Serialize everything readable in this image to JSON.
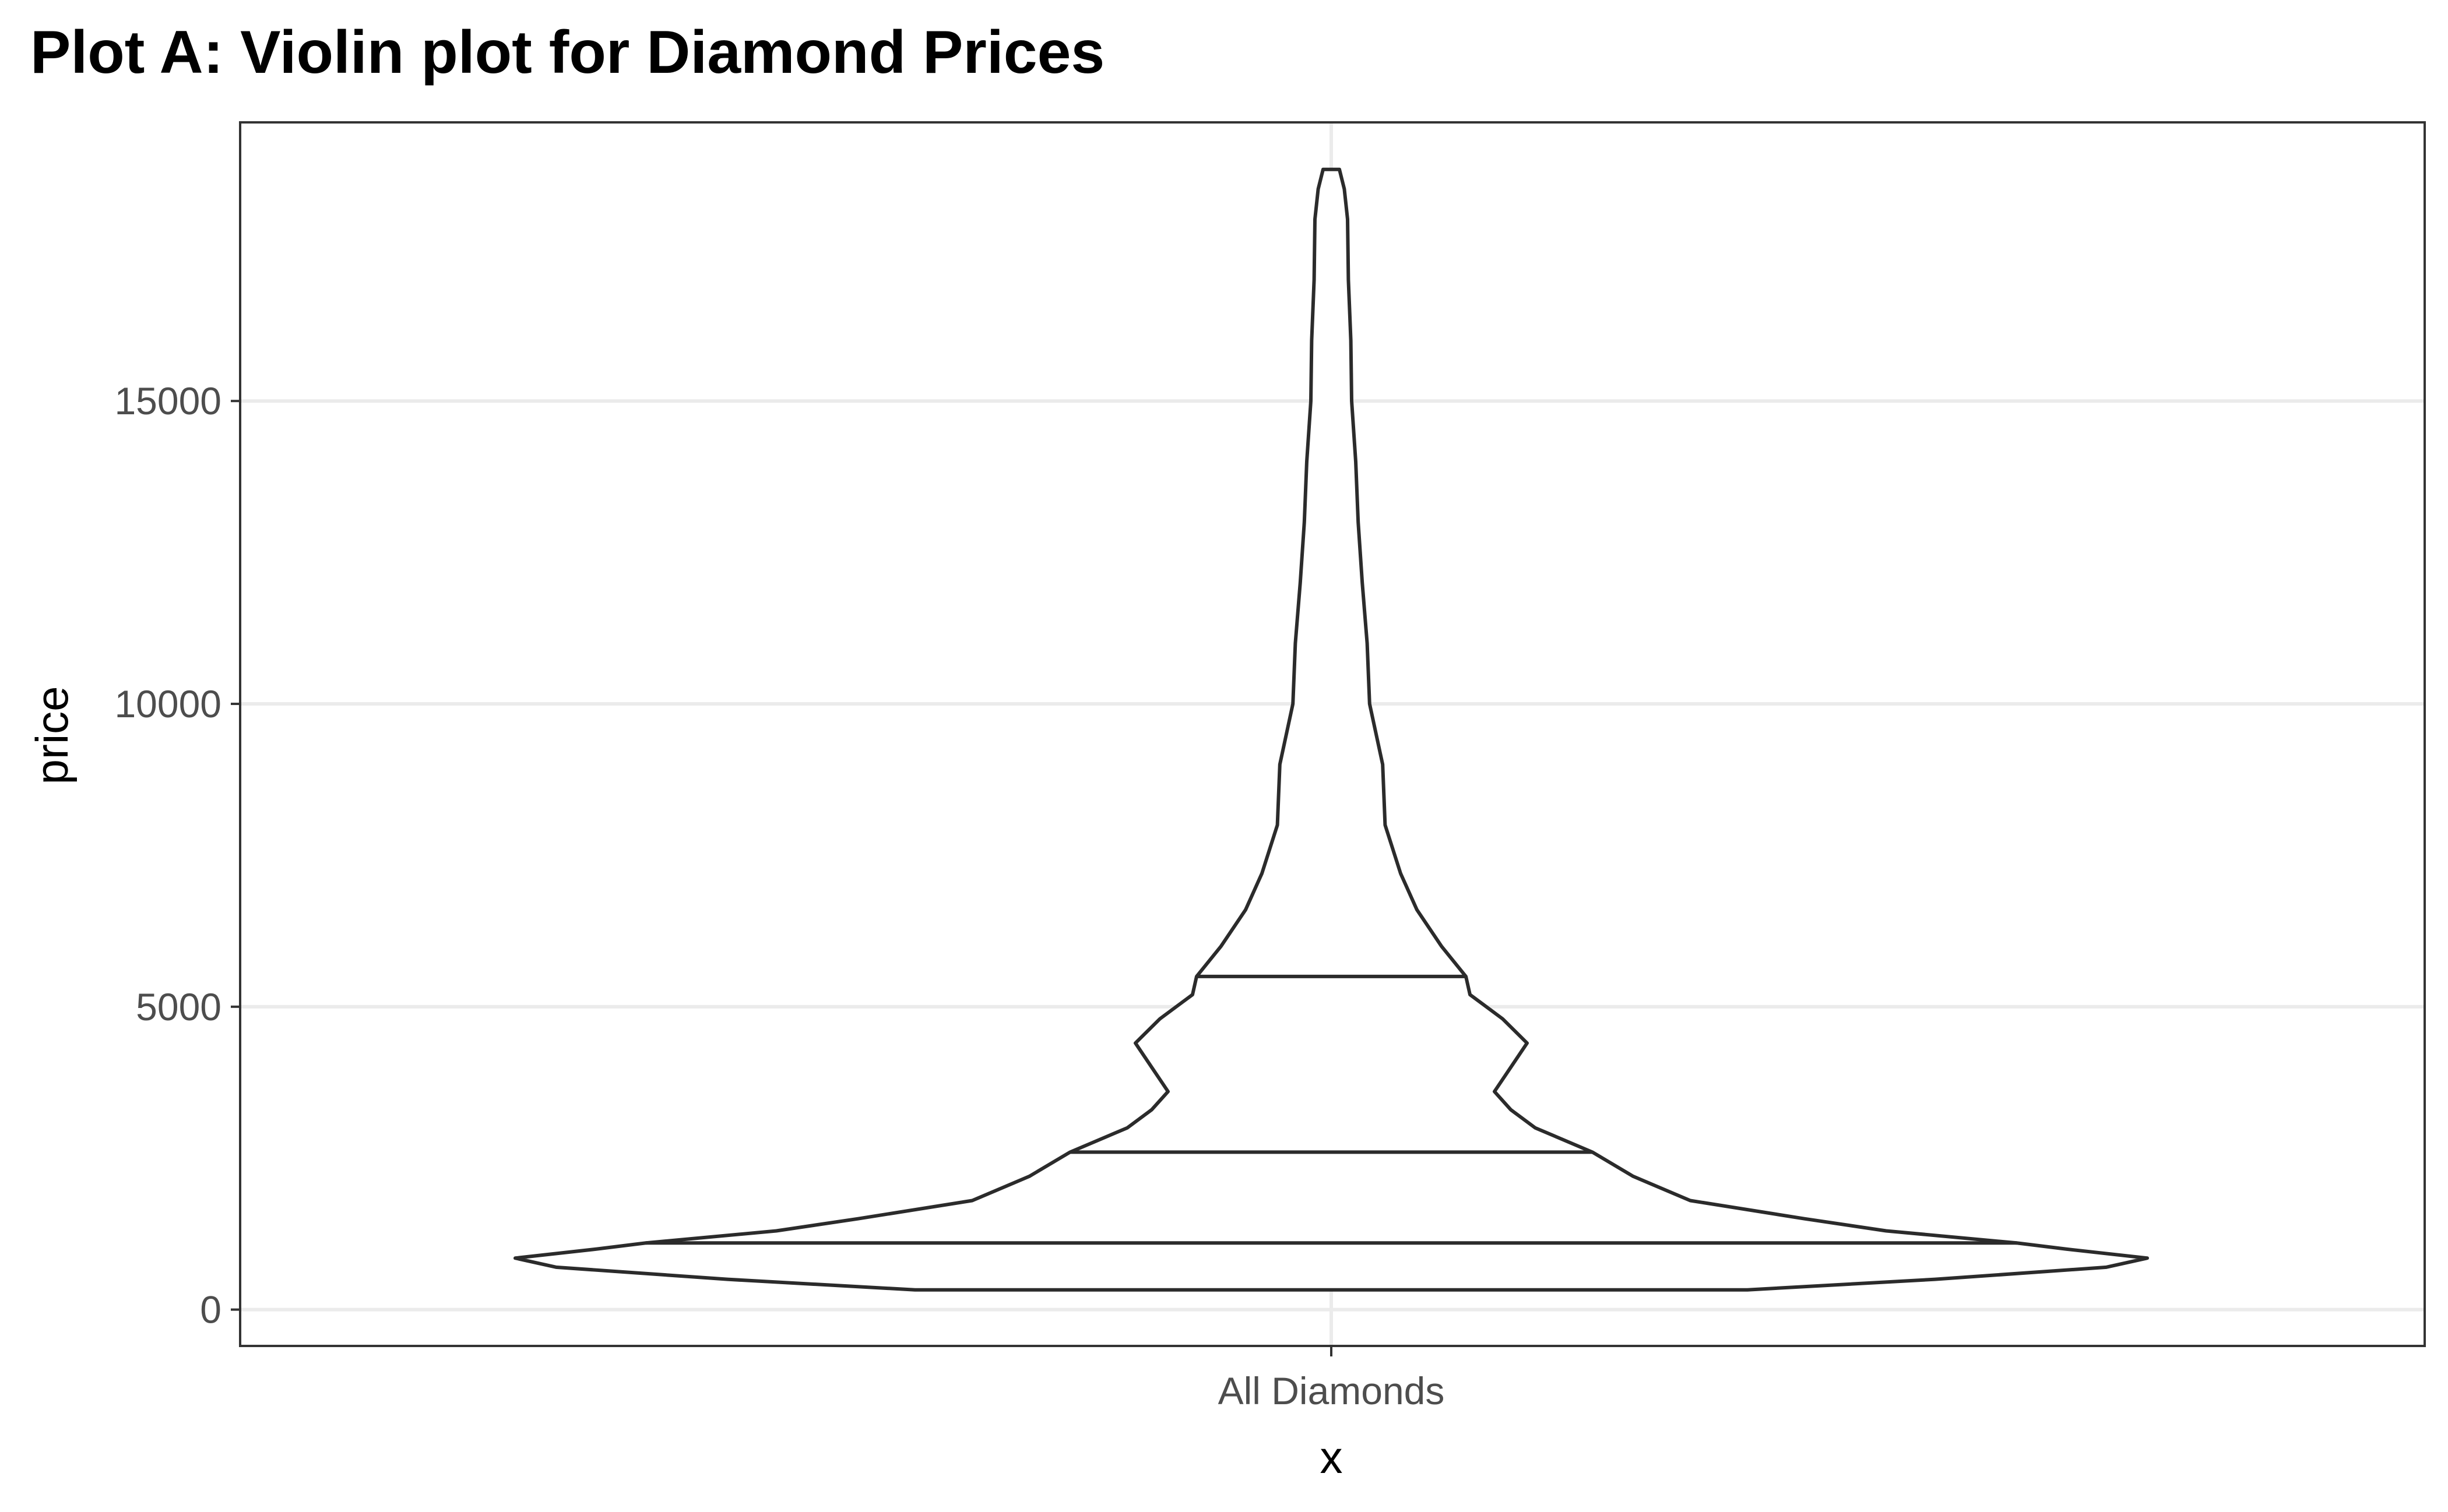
{
  "chart_data": {
    "type": "violin",
    "title": "Plot A: Violin plot for Diamond Prices",
    "xlabel": "x",
    "ylabel": "price",
    "categories": [
      "All Diamonds"
    ],
    "ylim": [
      -600,
      19600
    ],
    "yticks": [
      0,
      5000,
      10000,
      15000
    ],
    "grid": true,
    "legend": "none",
    "quantiles": [
      {
        "q": 0.25,
        "value": 1100
      },
      {
        "q": 0.5,
        "value": 2600
      },
      {
        "q": 0.75,
        "value": 5500
      }
    ],
    "density_profile": [
      {
        "price": 326,
        "width": 0.51
      },
      {
        "price": 500,
        "width": 0.74
      },
      {
        "price": 700,
        "width": 0.95
      },
      {
        "price": 850,
        "width": 1.0
      },
      {
        "price": 1000,
        "width": 0.9
      },
      {
        "price": 1100,
        "width": 0.84
      },
      {
        "price": 1300,
        "width": 0.68
      },
      {
        "price": 1500,
        "width": 0.58
      },
      {
        "price": 1800,
        "width": 0.44
      },
      {
        "price": 2200,
        "width": 0.37
      },
      {
        "price": 2600,
        "width": 0.32
      },
      {
        "price": 3000,
        "width": 0.25
      },
      {
        "price": 3300,
        "width": 0.22
      },
      {
        "price": 3600,
        "width": 0.2
      },
      {
        "price": 4000,
        "width": 0.22
      },
      {
        "price": 4400,
        "width": 0.24
      },
      {
        "price": 4800,
        "width": 0.21
      },
      {
        "price": 5200,
        "width": 0.17
      },
      {
        "price": 5500,
        "width": 0.165
      },
      {
        "price": 6000,
        "width": 0.135
      },
      {
        "price": 6600,
        "width": 0.105
      },
      {
        "price": 7200,
        "width": 0.085
      },
      {
        "price": 8000,
        "width": 0.066
      },
      {
        "price": 9000,
        "width": 0.063
      },
      {
        "price": 10000,
        "width": 0.047
      },
      {
        "price": 11000,
        "width": 0.044
      },
      {
        "price": 12000,
        "width": 0.038
      },
      {
        "price": 13000,
        "width": 0.033
      },
      {
        "price": 14000,
        "width": 0.03
      },
      {
        "price": 15000,
        "width": 0.025
      },
      {
        "price": 16000,
        "width": 0.024
      },
      {
        "price": 17000,
        "width": 0.021
      },
      {
        "price": 18000,
        "width": 0.02
      },
      {
        "price": 18500,
        "width": 0.016
      },
      {
        "price": 18823,
        "width": 0.01
      }
    ]
  }
}
